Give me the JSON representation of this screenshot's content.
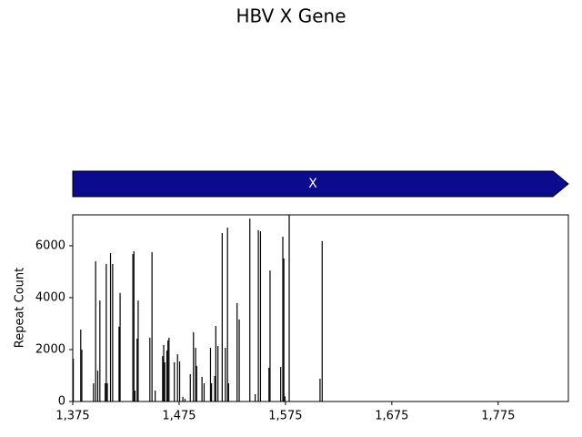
{
  "chart_data": {
    "type": "bar",
    "title": "HBV X Gene",
    "y_label": "Repeat Count",
    "color": "#000000",
    "genes": [
      {
        "name": "X",
        "start": 1375,
        "end": 1841,
        "color": "#0b0b8e"
      }
    ],
    "x": [
      1375,
      1382,
      1383,
      1394,
      1396,
      1398,
      1400,
      1405,
      1406,
      1407,
      1410,
      1412,
      1418,
      1419,
      1431,
      1432,
      1433,
      1435,
      1436,
      1447,
      1449,
      1452,
      1459,
      1460,
      1461,
      1463,
      1464,
      1465,
      1470,
      1473,
      1475,
      1478,
      1480,
      1485,
      1488,
      1490,
      1491,
      1496,
      1498,
      1504,
      1505,
      1508,
      1509,
      1511,
      1515,
      1518,
      1520,
      1521,
      1529,
      1531,
      1541,
      1546,
      1549,
      1551,
      1559,
      1560,
      1570,
      1572,
      1573,
      1574,
      1578,
      1607,
      1609
    ],
    "values": [
      1650,
      2770,
      2000,
      700,
      5400,
      1190,
      3890,
      700,
      5300,
      700,
      5720,
      5300,
      2880,
      4180,
      5680,
      5790,
      420,
      2420,
      3890,
      2460,
      5750,
      420,
      1750,
      2180,
      1510,
      1960,
      2350,
      2460,
      1510,
      1820,
      1540,
      180,
      100,
      1050,
      2670,
      2070,
      1370,
      950,
      700,
      2070,
      700,
      980,
      2910,
      2140,
      6490,
      2070,
      6700,
      700,
      3790,
      3160,
      7050,
      280,
      6600,
      6560,
      1300,
      5050,
      1330,
      6350,
      5510,
      200,
      7300,
      880,
      6180
    ],
    "xlim": [
      1375,
      1841
    ],
    "xticks": [
      {
        "value": 1375,
        "label": "1,375"
      },
      {
        "value": 1475,
        "label": "1,475"
      },
      {
        "value": 1575,
        "label": "1,575"
      },
      {
        "value": 1675,
        "label": "1,675"
      },
      {
        "value": 1775,
        "label": "1,775"
      }
    ],
    "ylim": [
      0,
      7190
    ],
    "yticks": [
      0,
      2000,
      4000,
      6000
    ]
  }
}
